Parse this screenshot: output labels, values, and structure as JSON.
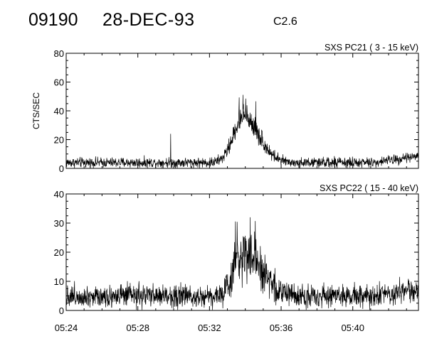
{
  "header": {
    "event_id": "09190",
    "date": "28-DEC-93",
    "goes_class": "C2.6"
  },
  "chart_data": [
    {
      "type": "line",
      "title": "SXS PC21  (  3 - 15 keV)",
      "ylabel": "CTS/SEC",
      "xlabel": "",
      "x_start": "05:24",
      "x_end": "05:43:40",
      "ylim": [
        0,
        80
      ],
      "y_ticks": [
        "0",
        "20",
        "40",
        "60",
        "80"
      ],
      "x_ticks": [
        "05:24",
        "05:28",
        "05:32",
        "05:36",
        "05:40"
      ],
      "profile": {
        "baseline": 4,
        "noise": 2.5,
        "peak_time": "05:33:55",
        "peak_value": 36,
        "rise_minutes": 0.8,
        "decay_minutes": 1.2,
        "max_value": 52,
        "spike_time": "05:29:50",
        "spike_value": 24,
        "late_rise_value": 9
      },
      "color": "#000000"
    },
    {
      "type": "line",
      "title": "SXS PC22  ( 15 - 40 keV)",
      "ylabel": "",
      "xlabel": "",
      "x_start": "05:24",
      "x_end": "05:43:40",
      "ylim": [
        0,
        40
      ],
      "y_ticks": [
        "0",
        "10",
        "20",
        "30",
        "40"
      ],
      "x_ticks": [
        "05:24",
        "05:28",
        "05:32",
        "05:36",
        "05:40"
      ],
      "profile": {
        "baseline": 5,
        "noise": 2.8,
        "peak_time": "05:33:45",
        "peak_value": 20,
        "rise_minutes": 0.6,
        "decay_minutes": 1.5,
        "max_value": 32,
        "spike_time": "",
        "spike_value": 0,
        "late_rise_value": 7
      },
      "color": "#000000"
    }
  ]
}
